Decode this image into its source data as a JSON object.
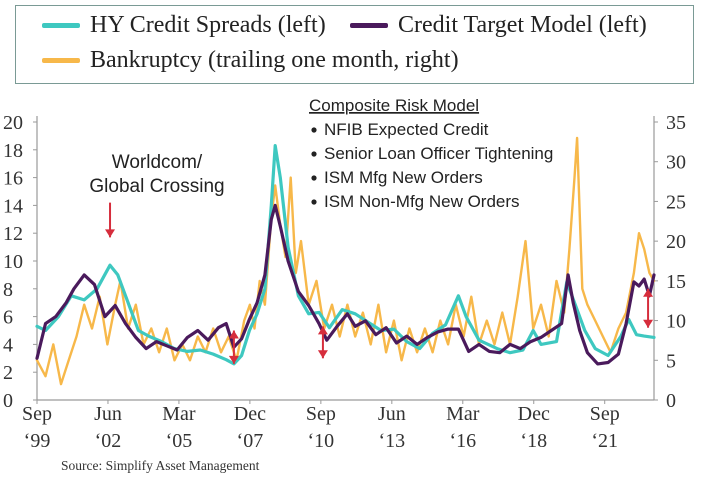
{
  "chart_data": {
    "type": "line",
    "title": "",
    "x_range": [
      1999.67,
      2023.58
    ],
    "x_ticks": [
      {
        "x": 1999.67,
        "label": [
          "Sep",
          "‘99"
        ]
      },
      {
        "x": 2002.42,
        "label": [
          "Jun",
          "‘02"
        ]
      },
      {
        "x": 2005.17,
        "label": [
          "Mar",
          "‘05"
        ]
      },
      {
        "x": 2007.92,
        "label": [
          "Dec",
          "‘07"
        ]
      },
      {
        "x": 2010.67,
        "label": [
          "Sep",
          "‘10"
        ]
      },
      {
        "x": 2013.42,
        "label": [
          "Jun",
          "‘13"
        ]
      },
      {
        "x": 2016.17,
        "label": [
          "Mar",
          "‘16"
        ]
      },
      {
        "x": 2018.92,
        "label": [
          "Dec",
          "‘18"
        ]
      },
      {
        "x": 2021.67,
        "label": [
          "Sep",
          "‘21"
        ]
      }
    ],
    "y_left": {
      "range": [
        0,
        20
      ],
      "ticks": [
        0,
        2,
        4,
        6,
        8,
        10,
        12,
        14,
        16,
        18,
        20
      ]
    },
    "y_right": {
      "range": [
        0,
        35
      ],
      "ticks": [
        0,
        5,
        10,
        15,
        20,
        25,
        30,
        35
      ]
    },
    "grid": false,
    "series": [
      {
        "name": "Bankruptcy (trailing one month, right)",
        "axis": "right",
        "color": "#f7b84a",
        "points": [
          [
            1999.67,
            5
          ],
          [
            2000.0,
            3
          ],
          [
            2000.3,
            7
          ],
          [
            2000.6,
            2
          ],
          [
            2000.9,
            5
          ],
          [
            2001.2,
            8
          ],
          [
            2001.5,
            12
          ],
          [
            2001.8,
            9
          ],
          [
            2002.1,
            13
          ],
          [
            2002.4,
            7
          ],
          [
            2002.7,
            12
          ],
          [
            2002.9,
            15
          ],
          [
            2003.2,
            9
          ],
          [
            2003.5,
            12
          ],
          [
            2003.8,
            7
          ],
          [
            2004.1,
            9
          ],
          [
            2004.4,
            6
          ],
          [
            2004.7,
            9
          ],
          [
            2005.0,
            5
          ],
          [
            2005.3,
            7
          ],
          [
            2005.6,
            5
          ],
          [
            2005.9,
            8
          ],
          [
            2006.2,
            6
          ],
          [
            2006.5,
            9
          ],
          [
            2006.8,
            6
          ],
          [
            2007.1,
            8
          ],
          [
            2007.4,
            5
          ],
          [
            2007.7,
            10
          ],
          [
            2007.92,
            12
          ],
          [
            2008.1,
            9
          ],
          [
            2008.3,
            15
          ],
          [
            2008.5,
            12
          ],
          [
            2008.75,
            23
          ],
          [
            2008.9,
            27
          ],
          [
            2009.1,
            22
          ],
          [
            2009.3,
            18
          ],
          [
            2009.5,
            28
          ],
          [
            2009.7,
            16
          ],
          [
            2009.9,
            20
          ],
          [
            2010.2,
            12
          ],
          [
            2010.5,
            15
          ],
          [
            2010.8,
            9
          ],
          [
            2011.1,
            12
          ],
          [
            2011.4,
            8
          ],
          [
            2011.7,
            12
          ],
          [
            2012.0,
            8
          ],
          [
            2012.3,
            11
          ],
          [
            2012.6,
            7
          ],
          [
            2012.9,
            12
          ],
          [
            2013.2,
            6
          ],
          [
            2013.5,
            10
          ],
          [
            2013.8,
            5
          ],
          [
            2014.1,
            9
          ],
          [
            2014.4,
            6
          ],
          [
            2014.7,
            9
          ],
          [
            2015.0,
            6
          ],
          [
            2015.3,
            10
          ],
          [
            2015.6,
            7
          ],
          [
            2015.9,
            12
          ],
          [
            2016.2,
            8
          ],
          [
            2016.5,
            13
          ],
          [
            2016.8,
            7
          ],
          [
            2017.1,
            10
          ],
          [
            2017.4,
            7
          ],
          [
            2017.7,
            11
          ],
          [
            2018.0,
            7
          ],
          [
            2018.3,
            13
          ],
          [
            2018.6,
            20
          ],
          [
            2018.9,
            9
          ],
          [
            2019.2,
            12
          ],
          [
            2019.5,
            8
          ],
          [
            2019.8,
            15
          ],
          [
            2020.1,
            11
          ],
          [
            2020.3,
            19
          ],
          [
            2020.5,
            28
          ],
          [
            2020.6,
            33
          ],
          [
            2020.8,
            14
          ],
          [
            2021.0,
            12
          ],
          [
            2021.3,
            10
          ],
          [
            2021.6,
            8
          ],
          [
            2021.9,
            6
          ],
          [
            2022.2,
            9
          ],
          [
            2022.5,
            11
          ],
          [
            2022.8,
            16
          ],
          [
            2023.0,
            21
          ],
          [
            2023.2,
            19
          ],
          [
            2023.4,
            16
          ],
          [
            2023.58,
            15
          ]
        ]
      },
      {
        "name": "HY Credit Spreads (left)",
        "axis": "left",
        "color": "#3ec8c0",
        "points": [
          [
            1999.67,
            5.3
          ],
          [
            2000.0,
            5.0
          ],
          [
            2000.5,
            6.0
          ],
          [
            2001.0,
            7.5
          ],
          [
            2001.5,
            7.2
          ],
          [
            2002.0,
            8.0
          ],
          [
            2002.5,
            9.7
          ],
          [
            2002.8,
            9.0
          ],
          [
            2003.2,
            7.0
          ],
          [
            2003.6,
            5.0
          ],
          [
            2004.0,
            4.6
          ],
          [
            2004.5,
            4.2
          ],
          [
            2005.0,
            3.7
          ],
          [
            2005.5,
            3.5
          ],
          [
            2006.0,
            3.6
          ],
          [
            2006.5,
            3.3
          ],
          [
            2007.0,
            2.9
          ],
          [
            2007.3,
            2.6
          ],
          [
            2007.6,
            3.2
          ],
          [
            2007.9,
            5.0
          ],
          [
            2008.2,
            6.2
          ],
          [
            2008.5,
            8.0
          ],
          [
            2008.75,
            14.0
          ],
          [
            2008.9,
            18.3
          ],
          [
            2009.1,
            16.0
          ],
          [
            2009.4,
            11.0
          ],
          [
            2009.8,
            7.5
          ],
          [
            2010.2,
            6.2
          ],
          [
            2010.6,
            6.3
          ],
          [
            2011.0,
            5.2
          ],
          [
            2011.5,
            6.5
          ],
          [
            2012.0,
            6.2
          ],
          [
            2012.5,
            5.6
          ],
          [
            2013.0,
            5.0
          ],
          [
            2013.5,
            5.1
          ],
          [
            2014.0,
            4.2
          ],
          [
            2014.5,
            3.7
          ],
          [
            2015.0,
            4.8
          ],
          [
            2015.5,
            5.4
          ],
          [
            2016.0,
            7.5
          ],
          [
            2016.3,
            6.0
          ],
          [
            2016.8,
            4.3
          ],
          [
            2017.5,
            3.7
          ],
          [
            2018.0,
            3.4
          ],
          [
            2018.5,
            3.6
          ],
          [
            2018.9,
            5.0
          ],
          [
            2019.2,
            4.0
          ],
          [
            2019.8,
            4.2
          ],
          [
            2020.2,
            8.5
          ],
          [
            2020.5,
            7.0
          ],
          [
            2020.9,
            5.0
          ],
          [
            2021.3,
            3.7
          ],
          [
            2021.8,
            3.2
          ],
          [
            2022.3,
            4.6
          ],
          [
            2022.6,
            5.8
          ],
          [
            2022.9,
            4.7
          ],
          [
            2023.2,
            4.6
          ],
          [
            2023.58,
            4.5
          ]
        ]
      },
      {
        "name": "Credit Target Model (left)",
        "axis": "left",
        "color": "#4a1a5c",
        "points": [
          [
            1999.67,
            3.0
          ],
          [
            2000.0,
            5.5
          ],
          [
            2000.4,
            6.0
          ],
          [
            2000.8,
            7.0
          ],
          [
            2001.1,
            8.0
          ],
          [
            2001.5,
            9.0
          ],
          [
            2001.9,
            8.3
          ],
          [
            2002.3,
            6.0
          ],
          [
            2002.7,
            6.8
          ],
          [
            2003.1,
            5.5
          ],
          [
            2003.5,
            4.5
          ],
          [
            2003.9,
            3.7
          ],
          [
            2004.3,
            4.2
          ],
          [
            2004.7,
            3.9
          ],
          [
            2005.1,
            3.6
          ],
          [
            2005.5,
            4.5
          ],
          [
            2005.9,
            5.0
          ],
          [
            2006.3,
            4.3
          ],
          [
            2006.7,
            5.2
          ],
          [
            2007.0,
            5.5
          ],
          [
            2007.3,
            3.8
          ],
          [
            2007.6,
            4.4
          ],
          [
            2007.9,
            5.8
          ],
          [
            2008.2,
            7.0
          ],
          [
            2008.5,
            9.0
          ],
          [
            2008.75,
            13.0
          ],
          [
            2008.9,
            14.0
          ],
          [
            2009.1,
            12.5
          ],
          [
            2009.4,
            10.0
          ],
          [
            2009.8,
            7.8
          ],
          [
            2010.2,
            6.8
          ],
          [
            2010.6,
            5.5
          ],
          [
            2010.9,
            4.3
          ],
          [
            2011.3,
            5.3
          ],
          [
            2011.7,
            6.2
          ],
          [
            2012.0,
            5.3
          ],
          [
            2012.4,
            5.7
          ],
          [
            2012.8,
            4.7
          ],
          [
            2013.2,
            5.2
          ],
          [
            2013.6,
            4.1
          ],
          [
            2014.0,
            4.6
          ],
          [
            2014.4,
            4.0
          ],
          [
            2014.8,
            4.5
          ],
          [
            2015.2,
            4.9
          ],
          [
            2015.6,
            5.1
          ],
          [
            2016.0,
            5.1
          ],
          [
            2016.4,
            3.5
          ],
          [
            2016.8,
            4.0
          ],
          [
            2017.2,
            3.5
          ],
          [
            2017.6,
            3.4
          ],
          [
            2018.0,
            4.0
          ],
          [
            2018.4,
            3.7
          ],
          [
            2018.8,
            4.2
          ],
          [
            2019.2,
            4.5
          ],
          [
            2019.6,
            5.0
          ],
          [
            2020.0,
            5.5
          ],
          [
            2020.25,
            9.0
          ],
          [
            2020.45,
            7.0
          ],
          [
            2020.7,
            5.0
          ],
          [
            2021.0,
            3.4
          ],
          [
            2021.4,
            2.6
          ],
          [
            2021.8,
            2.7
          ],
          [
            2022.2,
            3.3
          ],
          [
            2022.5,
            5.5
          ],
          [
            2022.8,
            8.5
          ],
          [
            2023.0,
            8.2
          ],
          [
            2023.2,
            8.7
          ],
          [
            2023.4,
            7.5
          ],
          [
            2023.58,
            9.0
          ]
        ]
      }
    ],
    "annotations": {
      "worldcom_label": [
        "Worldcom/",
        "Global Crossing"
      ],
      "composite_title": "Composite Risk Model",
      "composite_items": [
        "NFIB Expected Credit",
        "Senior Loan Officer Tightening",
        "ISM Mfg New Orders",
        "ISM Non-Mfg New Orders"
      ],
      "arrows": [
        {
          "x": 2002.5,
          "from": 14.2,
          "to": 11.7,
          "axis": "left",
          "style": "down"
        },
        {
          "x": 2007.3,
          "from": 5.0,
          "to": 2.6,
          "axis": "left",
          "style": "double"
        },
        {
          "x": 2010.75,
          "from": 5.3,
          "to": 3.0,
          "axis": "left",
          "style": "double"
        },
        {
          "x": 2023.35,
          "from": 8.0,
          "to": 5.2,
          "axis": "left",
          "style": "double"
        }
      ]
    }
  },
  "legend": {
    "items": [
      {
        "label": "HY Credit Spreads (left)",
        "color": "#3ec8c0"
      },
      {
        "label": "Credit Target Model (left)",
        "color": "#4a1a5c"
      },
      {
        "label": "Bankruptcy (trailing one month, right)",
        "color": "#f7b84a"
      }
    ]
  },
  "colors": {
    "axis": "#9a9a9a",
    "arrow": "#d62d3c",
    "text": "#222222"
  },
  "source": "Source: Simplify Asset Management"
}
